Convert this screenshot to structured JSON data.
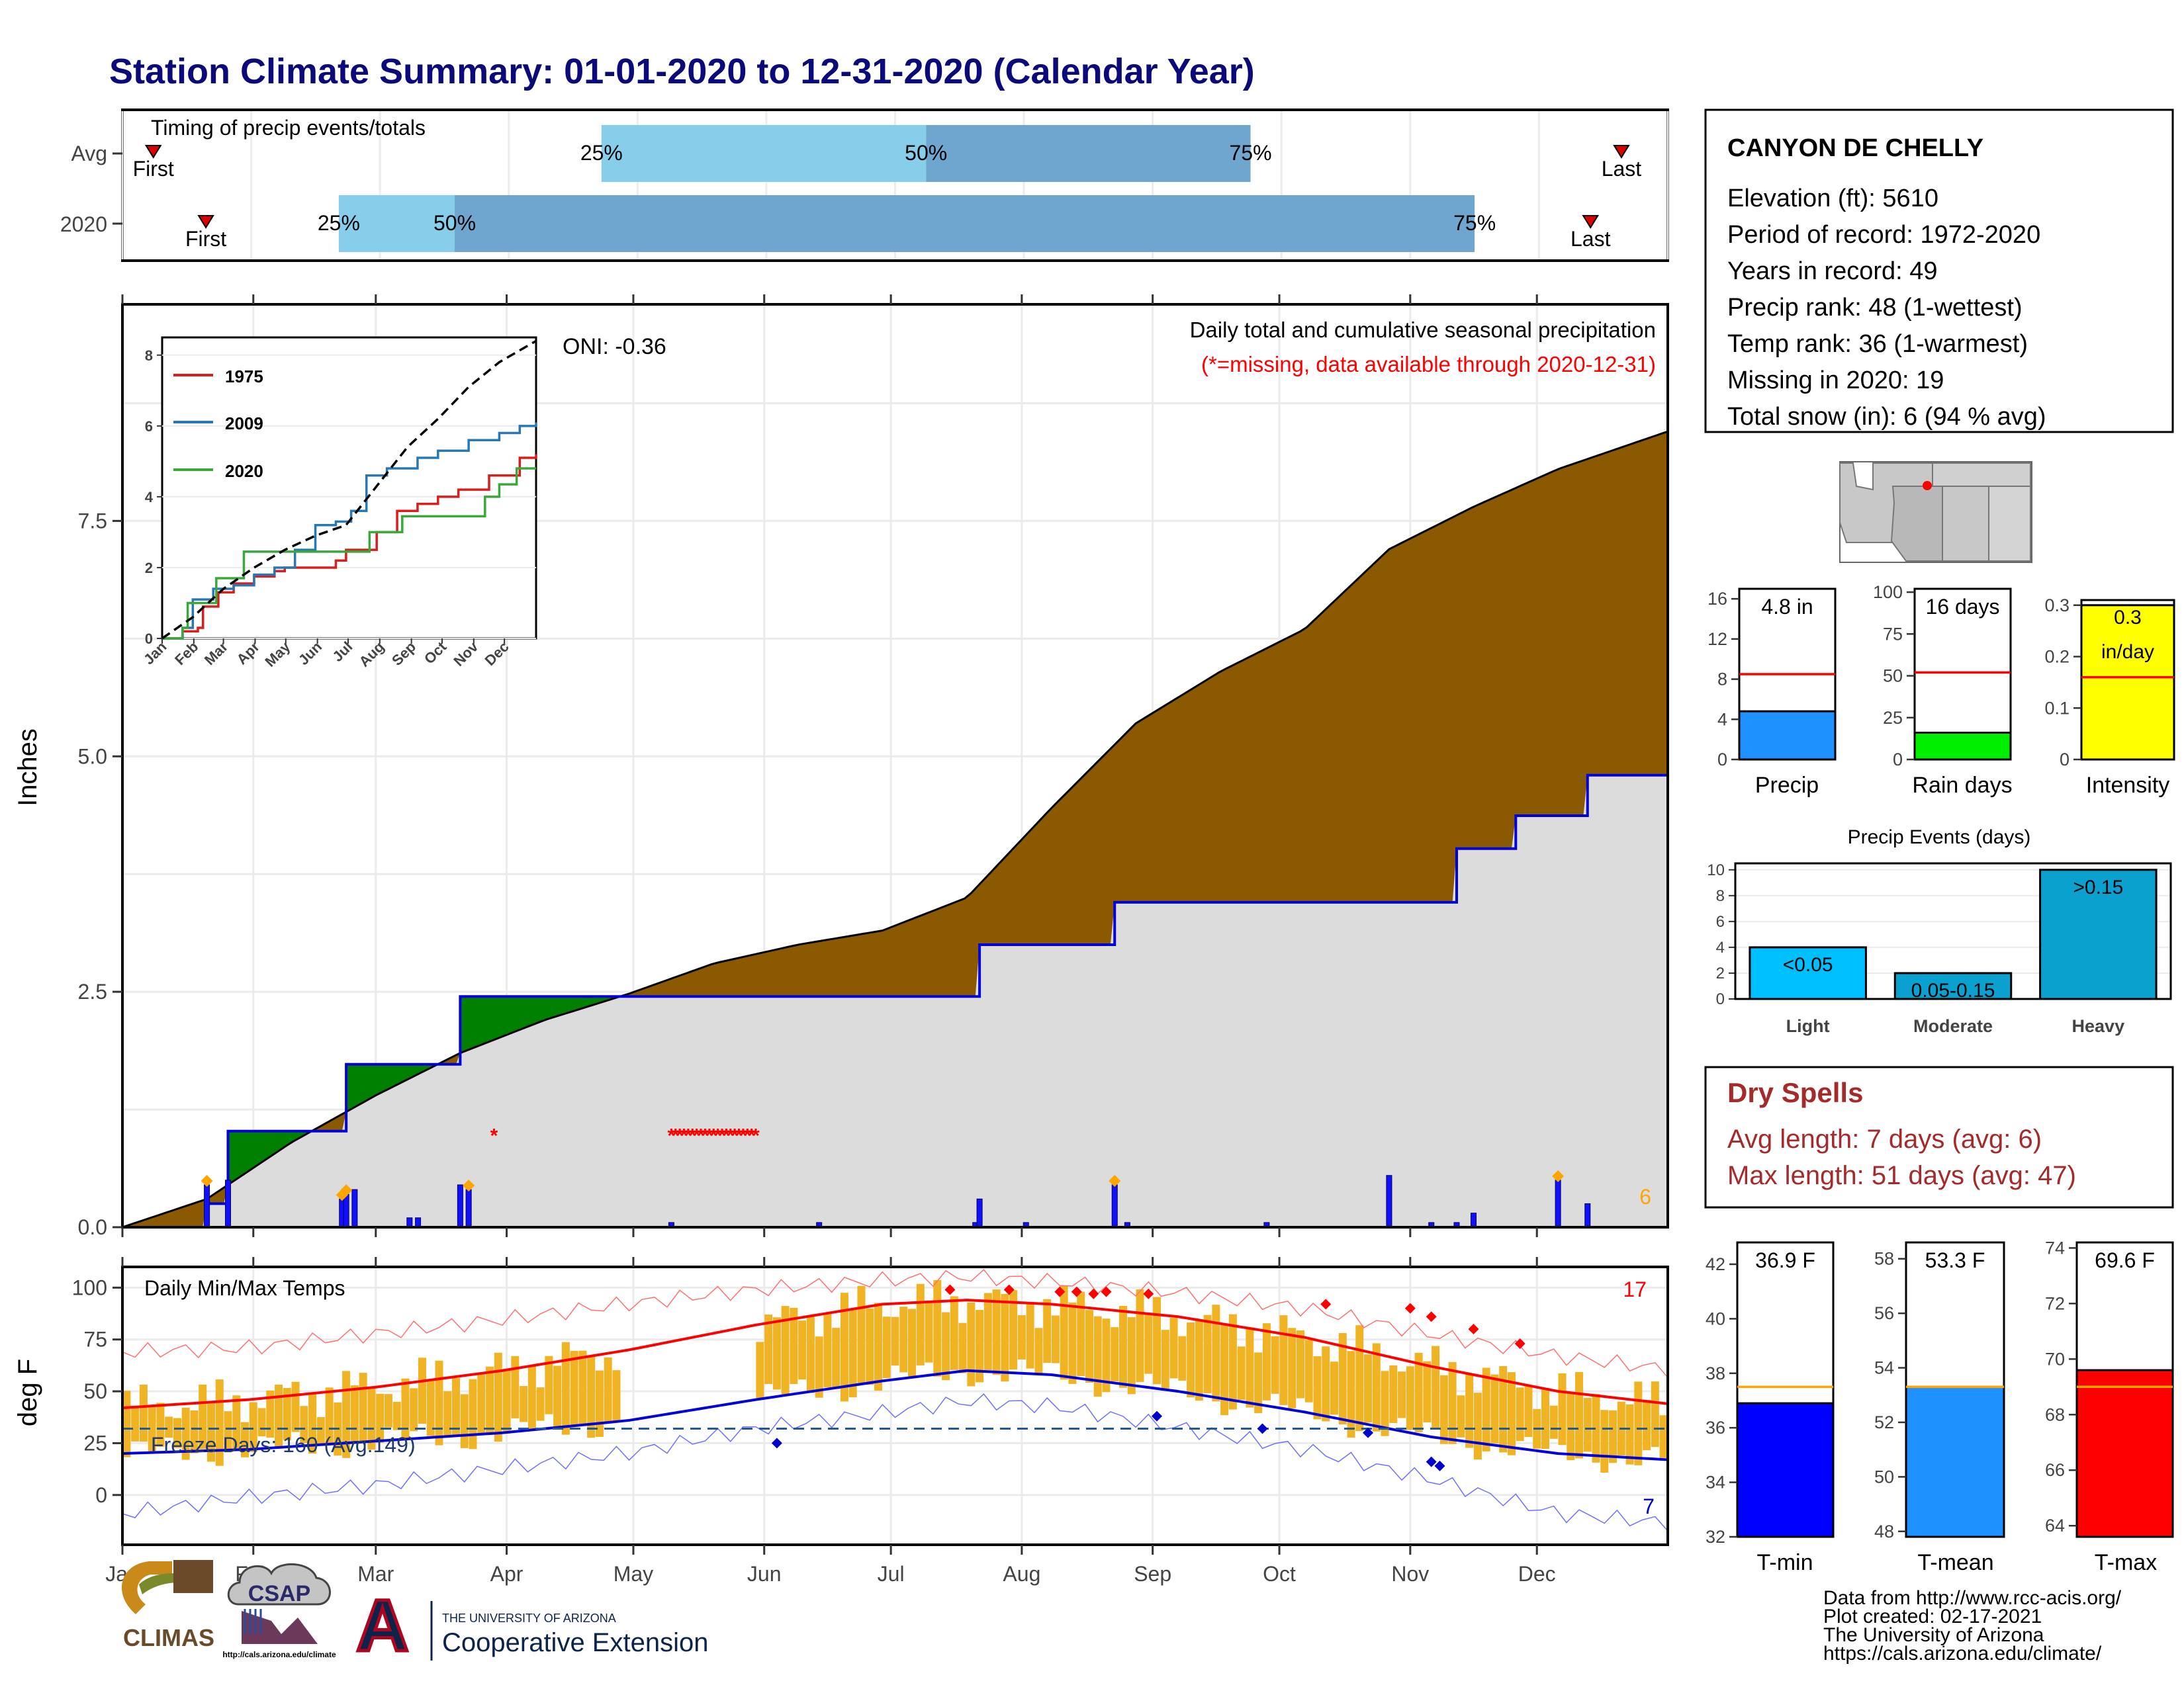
{
  "title": "Station Climate Summary: 01-01-2020 to 12-31-2020 (Calendar Year)",
  "timing": {
    "label": "Timing of precip events/totals",
    "rows": [
      {
        "name": "Avg",
        "first": 0.02,
        "p25": 0.31,
        "p50": 0.52,
        "p75": 0.73,
        "last": 0.97
      },
      {
        "name": "2020",
        "first": 0.054,
        "p25": 0.14,
        "p50": 0.215,
        "p75": 0.875,
        "last": 0.95
      }
    ],
    "pct_labels": [
      "25%",
      "50%",
      "75%"
    ],
    "first_label": "First",
    "last_label": "Last",
    "colors": {
      "light": "#87ceeb",
      "mid": "#6ea6cf",
      "marker": "#dd0000"
    }
  },
  "station": {
    "name": "CANYON DE CHELLY",
    "lines": [
      "Elevation (ft): 5610",
      "Period of record: 1972-2020",
      "Years in record: 49",
      "Precip rank: 48 (1-wettest)",
      "Temp rank: 36 (1-warmest)",
      "Missing in 2020: 19",
      "Total snow (in): 6 (94 % avg)"
    ]
  },
  "main_precip": {
    "ylabel": "Inches",
    "oni": "ONI: -0.36",
    "annotation1": "Daily total and cumulative seasonal precipitation",
    "annotation2": "(*=missing, data available through 2020-12-31)",
    "snow_total": "6",
    "yticks": [
      0.0,
      2.5,
      5.0,
      7.5
    ],
    "ytick_labels": [
      "0.0",
      "2.5",
      "5.0",
      "7.5"
    ],
    "ylim": [
      0,
      9.8
    ],
    "months": [
      "Jan",
      "Feb",
      "Mar",
      "Apr",
      "May",
      "Jun",
      "Jul",
      "Aug",
      "Sep",
      "Oct",
      "Nov",
      "Dec"
    ],
    "colors": {
      "avg_fill": "#8b5a00",
      "above_fill": "#008000",
      "base_fill": "#dcdcdc",
      "obs_line": "#0000dd",
      "missing": "#ff0000",
      "snow": "#ffa500"
    }
  },
  "chart_data": [
    {
      "type": "area",
      "name": "Daily total and cumulative seasonal precipitation",
      "x_unit": "day of year",
      "avg_cumulative": {
        "x": [
          0,
          20,
          40,
          60,
          80,
          100,
          120,
          140,
          160,
          180,
          200,
          220,
          240,
          260,
          280,
          300,
          320,
          340,
          366
        ],
        "y": [
          0,
          0.3,
          0.9,
          1.4,
          1.85,
          2.2,
          2.48,
          2.8,
          3.0,
          3.15,
          3.5,
          4.45,
          5.35,
          5.9,
          6.35,
          7.2,
          7.65,
          8.05,
          8.45
        ]
      },
      "obs_2020_cumulative": {
        "x": [
          0,
          20,
          25,
          52,
          53,
          63,
          80,
          82,
          120,
          159,
          168,
          200,
          203,
          232,
          235,
          257,
          264,
          300,
          316,
          330,
          347,
          366
        ],
        "y": [
          0,
          0.25,
          1.02,
          1.02,
          1.73,
          1.73,
          2.45,
          2.45,
          2.45,
          2.45,
          2.45,
          2.45,
          3.0,
          3.0,
          3.45,
          3.45,
          3.45,
          3.45,
          4.02,
          4.37,
          4.8,
          4.8
        ]
      },
      "daily": {
        "x": [
          20,
          25,
          52,
          53,
          55,
          68,
          70,
          80,
          82,
          130,
          165,
          202,
          203,
          214,
          235,
          238,
          271,
          300,
          310,
          316,
          320,
          340,
          347
        ],
        "y": [
          0.45,
          0.5,
          0.3,
          0.35,
          0.4,
          0.1,
          0.1,
          0.45,
          0.4,
          0.05,
          0.05,
          0.05,
          0.3,
          0.05,
          0.45,
          0.05,
          0.05,
          0.55,
          0.05,
          0.05,
          0.15,
          0.5,
          0.25
        ]
      },
      "snow_days": [
        20,
        52,
        53,
        82,
        235,
        340
      ],
      "missing_days": [
        88,
        130,
        131,
        132,
        133,
        134,
        135,
        136,
        137,
        138,
        139,
        140,
        141,
        142,
        143,
        144,
        145,
        146,
        147,
        148,
        149,
        150
      ]
    },
    {
      "type": "line",
      "name": "inset seasonal cumulative precip",
      "series": [
        {
          "name": "1975",
          "color": "#dd1c1c",
          "x": [
            0,
            20,
            35,
            40,
            55,
            70,
            90,
            110,
            120,
            150,
            170,
            180,
            210,
            230,
            250,
            270,
            290,
            320,
            350,
            366
          ],
          "y": [
            0,
            0.2,
            0.3,
            0.9,
            1.3,
            1.55,
            1.75,
            1.9,
            2.0,
            2.0,
            2.2,
            2.5,
            3.0,
            3.6,
            3.8,
            4.0,
            4.2,
            4.6,
            5.1,
            5.2
          ]
        },
        {
          "name": "2009",
          "color": "#2878b8",
          "x": [
            0,
            20,
            30,
            50,
            70,
            90,
            110,
            130,
            150,
            170,
            185,
            200,
            220,
            250,
            270,
            300,
            330,
            350,
            366
          ],
          "y": [
            0,
            0.3,
            1.1,
            1.4,
            1.5,
            1.8,
            2.0,
            2.5,
            3.2,
            3.3,
            3.6,
            4.6,
            4.8,
            5.1,
            5.3,
            5.6,
            5.8,
            6.0,
            6.1
          ]
        },
        {
          "name": "2020",
          "color": "#3aa83a",
          "x": [
            0,
            20,
            25,
            52,
            53,
            63,
            80,
            82,
            168,
            203,
            235,
            300,
            316,
            330,
            347,
            366
          ],
          "y": [
            0,
            0.3,
            1.0,
            1.0,
            1.7,
            1.7,
            2.45,
            2.45,
            2.45,
            3.0,
            3.45,
            3.45,
            4.0,
            4.35,
            4.8,
            4.8
          ]
        },
        {
          "name": "avg",
          "color": "#000000",
          "x": [
            0,
            30,
            60,
            90,
            120,
            150,
            180,
            210,
            240,
            270,
            300,
            330,
            366
          ],
          "y": [
            0,
            0.6,
            1.4,
            2.0,
            2.5,
            2.9,
            3.2,
            4.3,
            5.4,
            6.2,
            7.1,
            7.8,
            8.4
          ]
        }
      ],
      "yticks": [
        0,
        2,
        4,
        6,
        8
      ],
      "ylim": [
        0,
        8.5
      ]
    },
    {
      "type": "bar",
      "name": "Precip",
      "categories": [
        "Precip"
      ],
      "values": [
        4.8
      ],
      "avg": 8.5,
      "ylim": [
        0,
        17
      ],
      "yticks": [
        0,
        4,
        8,
        12,
        16
      ],
      "value_label": "4.8 in",
      "color": "#1e90ff"
    },
    {
      "type": "bar",
      "name": "Rain days",
      "categories": [
        "Rain days"
      ],
      "values": [
        16
      ],
      "avg": 52,
      "ylim": [
        0,
        102
      ],
      "yticks": [
        0,
        25,
        50,
        75,
        100
      ],
      "value_label": "16 days",
      "color": "#00ee00"
    },
    {
      "type": "bar",
      "name": "Intensity",
      "categories": [
        "Intensity"
      ],
      "values": [
        0.3
      ],
      "avg": 0.16,
      "ylim": [
        0,
        0.31
      ],
      "yticks": [
        0.0,
        0.1,
        0.2,
        0.3
      ],
      "value_label_lines": [
        "0.3",
        "in/day"
      ],
      "color": "#ffff00"
    },
    {
      "type": "bar",
      "name": "Precip Events (days)",
      "categories": [
        "Light",
        "Moderate",
        "Heavy"
      ],
      "values": [
        4,
        2,
        10
      ],
      "bar_labels": [
        "<0.05",
        "0.05-0.15",
        ">0.15"
      ],
      "ylim": [
        0,
        10.5
      ],
      "yticks": [
        0,
        2,
        4,
        6,
        8,
        10
      ],
      "color": "#0ba1cf"
    },
    {
      "type": "line",
      "name": "Daily Min/Max Temps",
      "ylim": [
        -24,
        110
      ],
      "yticks": [
        0,
        25,
        50,
        75,
        100
      ],
      "freeze_line": 32,
      "avg_max": {
        "x": [
          0,
          30,
          60,
          90,
          120,
          150,
          180,
          200,
          220,
          250,
          280,
          310,
          340,
          366
        ],
        "y": [
          42,
          46,
          52,
          60,
          70,
          82,
          92,
          94,
          92,
          86,
          76,
          62,
          50,
          44
        ]
      },
      "avg_min": {
        "x": [
          0,
          30,
          60,
          90,
          120,
          150,
          180,
          200,
          220,
          250,
          280,
          310,
          340,
          366
        ],
        "y": [
          20,
          22,
          26,
          30,
          36,
          46,
          55,
          60,
          58,
          50,
          40,
          28,
          20,
          17
        ]
      },
      "record_max": {
        "x": [
          0,
          30,
          60,
          90,
          120,
          150,
          180,
          200,
          220,
          250,
          280,
          310,
          340,
          366
        ],
        "y": [
          66,
          68,
          75,
          82,
          90,
          97,
          102,
          104,
          102,
          97,
          90,
          78,
          68,
          62
        ]
      },
      "record_min": {
        "x": [
          0,
          30,
          60,
          90,
          120,
          150,
          180,
          200,
          220,
          250,
          280,
          310,
          340,
          366
        ],
        "y": [
          -12,
          -4,
          2,
          10,
          18,
          30,
          38,
          44,
          42,
          32,
          22,
          8,
          -8,
          -12
        ]
      },
      "freeze_days_label": "Freeze Days: 160 (Avg:149)",
      "count_above": "17",
      "count_below": "7"
    },
    {
      "type": "bar",
      "name": "T-min",
      "categories": [
        "T-min"
      ],
      "values": [
        36.9
      ],
      "avg": 37.5,
      "ylim": [
        32,
        42.8
      ],
      "yticks": [
        32,
        34,
        36,
        38,
        40,
        42
      ],
      "value_label": "36.9 F",
      "color": "#0000ff"
    },
    {
      "type": "bar",
      "name": "T-mean",
      "categories": [
        "T-mean"
      ],
      "values": [
        53.3
      ],
      "avg": 53.3,
      "ylim": [
        47.8,
        58.6
      ],
      "yticks": [
        48,
        50,
        52,
        54,
        56,
        58
      ],
      "value_label": "53.3 F",
      "color": "#1e90ff"
    },
    {
      "type": "bar",
      "name": "T-max",
      "categories": [
        "T-max"
      ],
      "values": [
        69.6
      ],
      "avg": 69.0,
      "ylim": [
        63.6,
        74.2
      ],
      "yticks": [
        64,
        66,
        68,
        70,
        72,
        74
      ],
      "value_label": "69.6 F",
      "color": "#ff0000"
    }
  ],
  "temps": {
    "title": "Daily Min/Max Temps",
    "ylabel": "deg F",
    "colors": {
      "range": "#f0b323",
      "avg_max": "#ff0000",
      "avg_min": "#0000dd",
      "rec_max": "#ff7070",
      "rec_min": "#7070ff",
      "freeze": "#1f5a96",
      "hot": "#ff0000",
      "cold": "#0000cc"
    }
  },
  "dry_spells": {
    "title": "Dry Spells",
    "avg_length": "Avg length: 7 days (avg: 6)",
    "max_length": "Max length: 51 days (avg: 47)",
    "color": "#a52a2a"
  },
  "footer": {
    "lines": [
      "Data from http://www.rcc-acis.org/",
      "Plot created: 02-17-2021",
      "The University of Arizona",
      "https://cals.arizona.edu/climate/"
    ],
    "climas": "CLIMAS",
    "csap": "CSAP",
    "csap_url": "http://cals.arizona.edu/climate",
    "ua_small": "THE UNIVERSITY OF ARIZONA",
    "ua_large": "Cooperative Extension",
    "ua_letter": "A"
  }
}
